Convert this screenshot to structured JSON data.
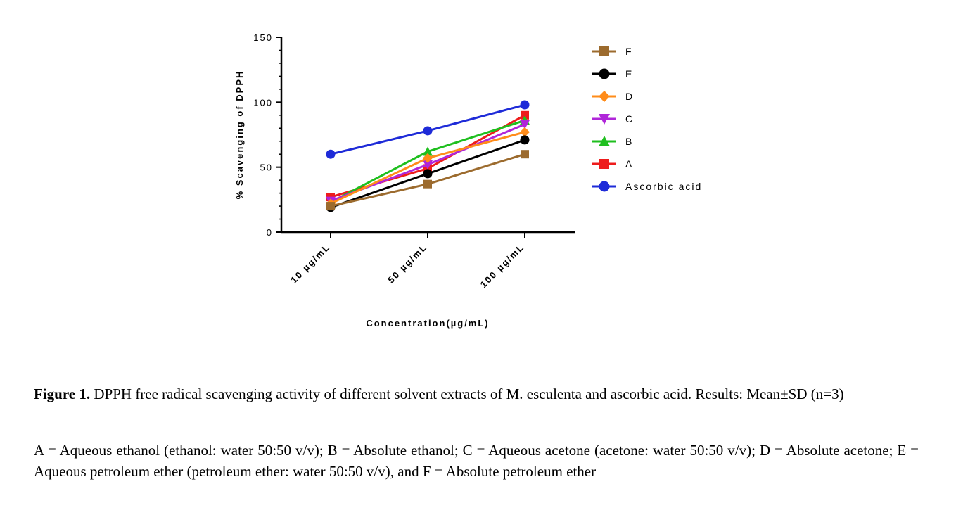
{
  "chart_data": {
    "type": "line",
    "categories": [
      "10 µg/mL",
      "50 µg/mL",
      "100 µg/mL"
    ],
    "xlabel": "Concentration(µg/mL)",
    "ylabel": "% Scavenging of DPPH",
    "ylim": [
      0,
      150
    ],
    "yticks": [
      "0",
      "50",
      "100",
      "150"
    ],
    "legend_position": "right",
    "series": [
      {
        "name": "F",
        "color": "#9C6B2E",
        "marker": "square",
        "values": [
          20,
          37,
          60
        ]
      },
      {
        "name": "E",
        "color": "#000000",
        "marker": "circle",
        "values": [
          19,
          45,
          71
        ]
      },
      {
        "name": "D",
        "color": "#FF8C1A",
        "marker": "diamond",
        "values": [
          22,
          57,
          77
        ]
      },
      {
        "name": "C",
        "color": "#B026D9",
        "marker": "triangle-down",
        "values": [
          24,
          52,
          83
        ]
      },
      {
        "name": "B",
        "color": "#1FBF1F",
        "marker": "triangle-up",
        "values": [
          23,
          62,
          86
        ]
      },
      {
        "name": "A",
        "color": "#EE1C1C",
        "marker": "square",
        "values": [
          27,
          49,
          90
        ]
      },
      {
        "name": "Ascorbic acid",
        "color": "#1E2BD8",
        "marker": "circle",
        "values": [
          60,
          78,
          98
        ]
      }
    ]
  },
  "caption": {
    "label": "Figure 1.",
    "text": " DPPH free radical scavenging activity of different solvent extracts of M. esculenta and ascorbic acid. Results: Mean±SD (n=3)"
  },
  "note": "A = Aqueous ethanol (ethanol: water 50:50 v/v); B = Absolute ethanol; C = Aqueous acetone (acetone: water 50:50 v/v); D = Absolute acetone; E = Aqueous petroleum ether (petroleum ether: water 50:50 v/v), and F = Absolute petroleum ether"
}
